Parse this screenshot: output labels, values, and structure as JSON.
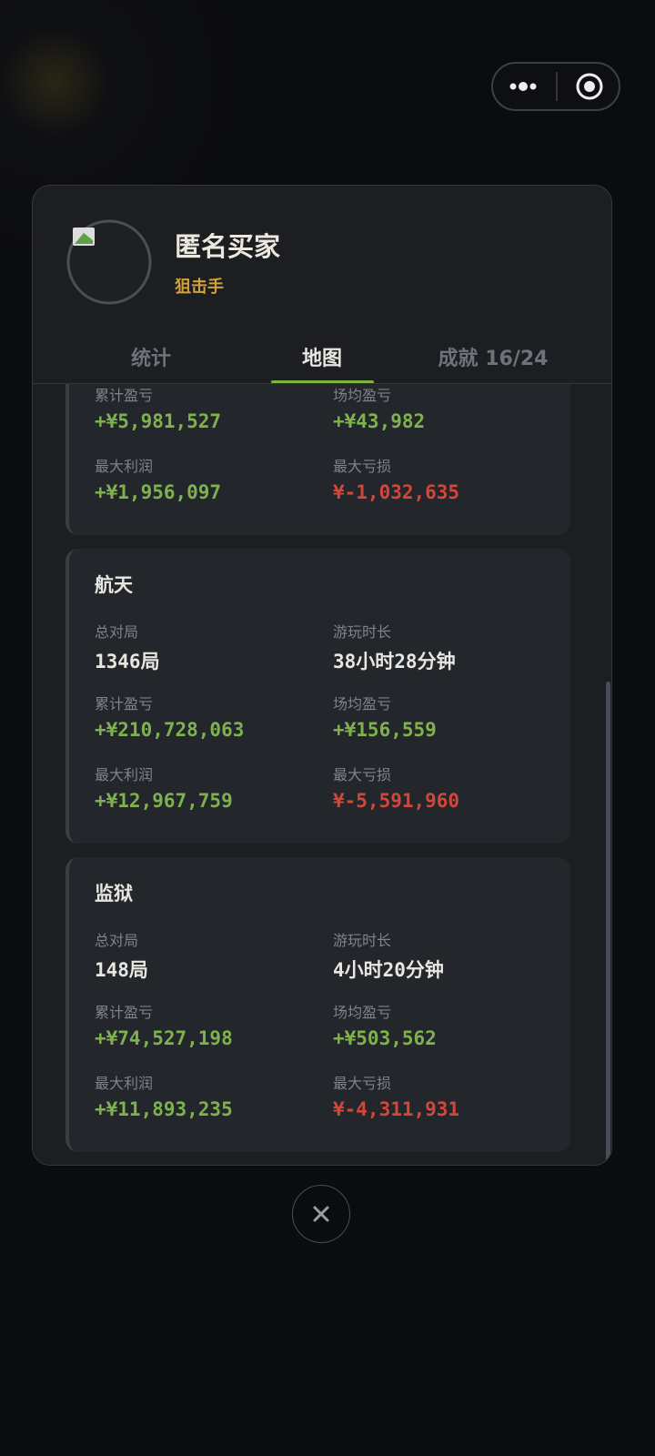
{
  "profile": {
    "name": "匿名买家",
    "title": "狙击手"
  },
  "tabs": [
    "统计",
    "地图",
    "成就 16/24"
  ],
  "cards": [
    {
      "fields": [
        {
          "label": "累计盈亏",
          "value": "+¥5,981,527"
        },
        {
          "label": "场均盈亏",
          "value": "+¥43,982"
        },
        {
          "label": "最大利润",
          "value": "+¥1,956,097"
        },
        {
          "label": "最大亏损",
          "value": "¥-1,032,635"
        }
      ]
    },
    {
      "title": "航天",
      "fields": [
        {
          "label": "总对局",
          "value": "1346局"
        },
        {
          "label": "游玩时长",
          "value": "38小时28分钟"
        },
        {
          "label": "累计盈亏",
          "value": "+¥210,728,063"
        },
        {
          "label": "场均盈亏",
          "value": "+¥156,559"
        },
        {
          "label": "最大利润",
          "value": "+¥12,967,759"
        },
        {
          "label": "最大亏损",
          "value": "¥-5,591,960"
        }
      ]
    },
    {
      "title": "监狱",
      "fields": [
        {
          "label": "总对局",
          "value": "148局"
        },
        {
          "label": "游玩时长",
          "value": "4小时20分钟"
        },
        {
          "label": "累计盈亏",
          "value": "+¥74,527,198"
        },
        {
          "label": "场均盈亏",
          "value": "+¥503,562"
        },
        {
          "label": "最大利润",
          "value": "+¥11,893,235"
        },
        {
          "label": "最大亏损",
          "value": "¥-4,311,931"
        }
      ]
    }
  ]
}
